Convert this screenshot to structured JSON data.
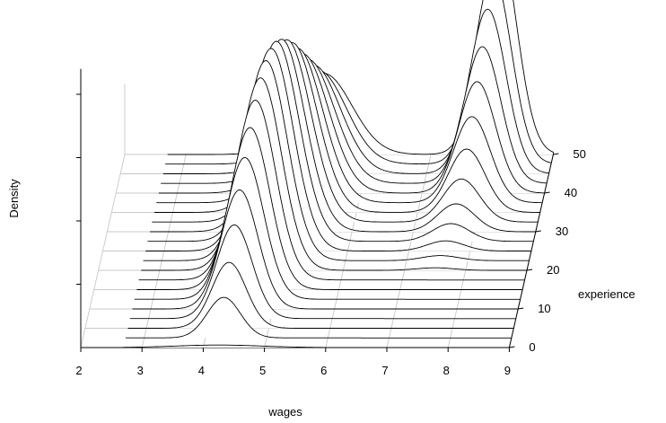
{
  "chart_data": {
    "type": "3d-ridgeline",
    "xlabel": "wages",
    "ylabel": "Density",
    "zlabel": "experience",
    "x_ticks": [
      2,
      3,
      4,
      5,
      6,
      7,
      8,
      9
    ],
    "z_ticks": [
      0,
      10,
      20,
      30,
      40,
      50
    ],
    "xlim": [
      2,
      9
    ],
    "zlim": [
      0,
      50
    ],
    "ylim": [
      0,
      1.0
    ],
    "grid": true,
    "series": [
      {
        "experience": 0,
        "peaks": [
          {
            "mean": 4.25,
            "sd": 0.7,
            "height": 0.01
          }
        ]
      },
      {
        "experience": 2.5,
        "peaks": [
          {
            "mean": 4.3,
            "sd": 0.27,
            "height": 0.16
          }
        ]
      },
      {
        "experience": 5,
        "peaks": [
          {
            "mean": 4.35,
            "sd": 0.28,
            "height": 0.26
          }
        ]
      },
      {
        "experience": 7.5,
        "peaks": [
          {
            "mean": 4.4,
            "sd": 0.29,
            "height": 0.37
          }
        ]
      },
      {
        "experience": 10,
        "peaks": [
          {
            "mean": 4.45,
            "sd": 0.3,
            "height": 0.47
          }
        ]
      },
      {
        "experience": 12.5,
        "peaks": [
          {
            "mean": 4.5,
            "sd": 0.31,
            "height": 0.56
          }
        ]
      },
      {
        "experience": 15,
        "peaks": [
          {
            "mean": 4.55,
            "sd": 0.32,
            "height": 0.64
          }
        ]
      },
      {
        "experience": 17.5,
        "peaks": [
          {
            "mean": 4.6,
            "sd": 0.33,
            "height": 0.71
          }
        ]
      },
      {
        "experience": 20,
        "peaks": [
          {
            "mean": 4.65,
            "sd": 0.34,
            "height": 0.76
          },
          {
            "mean": 7.5,
            "sd": 0.3,
            "height": 0.01
          }
        ]
      },
      {
        "experience": 22.5,
        "peaks": [
          {
            "mean": 4.7,
            "sd": 0.35,
            "height": 0.79
          },
          {
            "mean": 7.55,
            "sd": 0.3,
            "height": 0.02
          }
        ]
      },
      {
        "experience": 25,
        "peaks": [
          {
            "mean": 4.75,
            "sd": 0.36,
            "height": 0.8
          },
          {
            "mean": 7.6,
            "sd": 0.3,
            "height": 0.04
          }
        ]
      },
      {
        "experience": 27.5,
        "peaks": [
          {
            "mean": 4.8,
            "sd": 0.37,
            "height": 0.79
          },
          {
            "mean": 7.65,
            "sd": 0.3,
            "height": 0.07
          }
        ]
      },
      {
        "experience": 30,
        "peaks": [
          {
            "mean": 4.85,
            "sd": 0.38,
            "height": 0.76
          },
          {
            "mean": 7.7,
            "sd": 0.3,
            "height": 0.11
          }
        ]
      },
      {
        "experience": 32.5,
        "peaks": [
          {
            "mean": 4.9,
            "sd": 0.39,
            "height": 0.72
          },
          {
            "mean": 7.75,
            "sd": 0.3,
            "height": 0.17
          }
        ]
      },
      {
        "experience": 35,
        "peaks": [
          {
            "mean": 4.95,
            "sd": 0.4,
            "height": 0.67
          },
          {
            "mean": 7.8,
            "sd": 0.3,
            "height": 0.25
          }
        ]
      },
      {
        "experience": 37.5,
        "peaks": [
          {
            "mean": 5.0,
            "sd": 0.41,
            "height": 0.61
          },
          {
            "mean": 7.85,
            "sd": 0.3,
            "height": 0.34
          }
        ]
      },
      {
        "experience": 40,
        "peaks": [
          {
            "mean": 5.05,
            "sd": 0.42,
            "height": 0.55
          },
          {
            "mean": 7.9,
            "sd": 0.3,
            "height": 0.44
          }
        ]
      },
      {
        "experience": 42.5,
        "peaks": [
          {
            "mean": 5.1,
            "sd": 0.43,
            "height": 0.49
          },
          {
            "mean": 7.95,
            "sd": 0.3,
            "height": 0.54
          }
        ]
      },
      {
        "experience": 45,
        "peaks": [
          {
            "mean": 5.15,
            "sd": 0.44,
            "height": 0.43
          },
          {
            "mean": 8.0,
            "sd": 0.3,
            "height": 0.65
          }
        ]
      },
      {
        "experience": 47.5,
        "peaks": [
          {
            "mean": 5.2,
            "sd": 0.45,
            "height": 0.37
          },
          {
            "mean": 8.05,
            "sd": 0.3,
            "height": 0.75
          }
        ]
      },
      {
        "experience": 50,
        "peaks": [
          {
            "mean": 5.25,
            "sd": 0.46,
            "height": 0.32
          },
          {
            "mean": 8.1,
            "sd": 0.3,
            "height": 0.85
          }
        ]
      }
    ]
  }
}
